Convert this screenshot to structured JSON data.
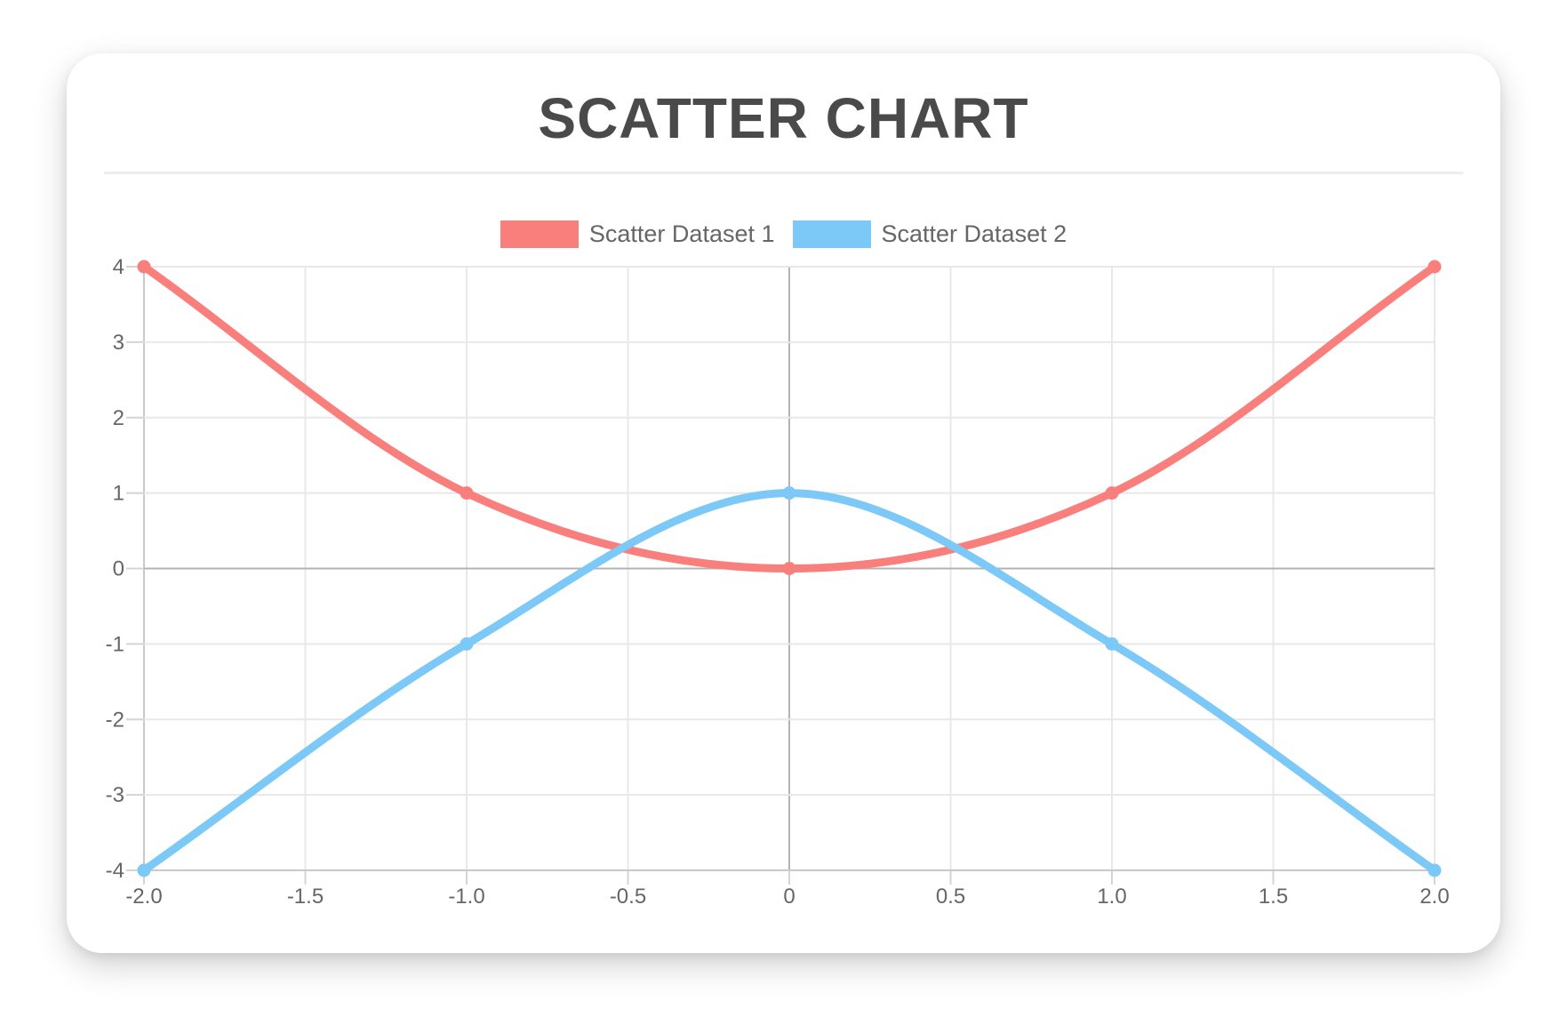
{
  "title": "SCATTER CHART",
  "legend": {
    "items": [
      {
        "label": "Scatter Dataset 1",
        "color": "#f97f7d"
      },
      {
        "label": "Scatter Dataset 2",
        "color": "#7cc8f6"
      }
    ]
  },
  "chart_data": {
    "type": "scatter",
    "title": "SCATTER CHART",
    "xlabel": "",
    "ylabel": "",
    "xlim": [
      -2,
      2
    ],
    "ylim": [
      -4,
      4
    ],
    "x_ticks": [
      "-2.0",
      "-1.5",
      "-1.0",
      "-0.5",
      "0",
      "0.5",
      "1.0",
      "1.5",
      "2.0"
    ],
    "y_ticks": [
      "4",
      "3",
      "2",
      "1",
      "0",
      "-1",
      "-2",
      "-3",
      "-4"
    ],
    "grid": true,
    "legend_position": "top",
    "line_style": "smooth-monotone",
    "series": [
      {
        "name": "Scatter Dataset 1",
        "color": "#f97f7d",
        "points": [
          [
            -2,
            4
          ],
          [
            -1,
            1
          ],
          [
            0,
            0
          ],
          [
            1,
            1
          ],
          [
            2,
            4
          ]
        ]
      },
      {
        "name": "Scatter Dataset 2",
        "color": "#7cc8f6",
        "points": [
          [
            -2,
            -4
          ],
          [
            -1,
            -1
          ],
          [
            0,
            1
          ],
          [
            1,
            -1
          ],
          [
            2,
            -4
          ]
        ]
      }
    ],
    "colors": {
      "grid": "#e8e8e8",
      "zero_line": "#b3b3b3",
      "axis_border": "#c9c9c9",
      "tick_mark": "#d4d4d4",
      "tick_label": "#666666",
      "title": "#4a4a4a"
    }
  }
}
